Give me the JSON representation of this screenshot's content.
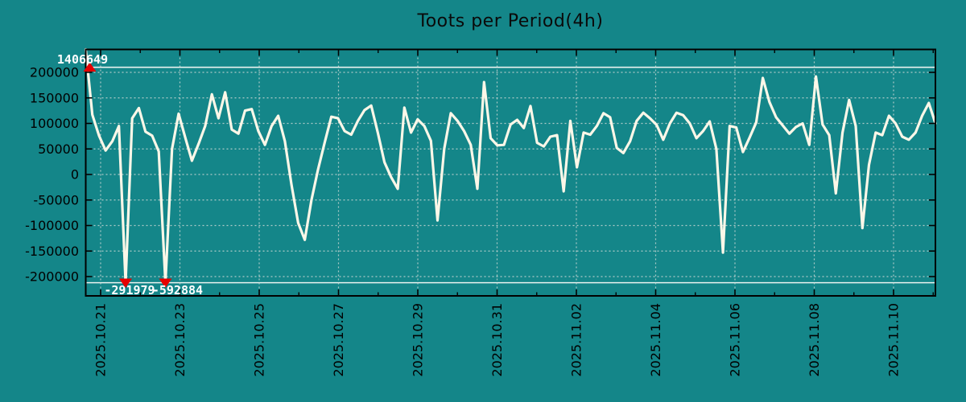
{
  "colors": {
    "background": "#148689",
    "line": "#fcf7e8",
    "grid": "#c8d6d4",
    "frame": "#000000",
    "tick_text": "#000000",
    "title_text": "#0a0a0a",
    "marker": "#e60000",
    "annotation_text": "#ffffff",
    "offscale_line": "#e9f2ef"
  },
  "chart_data": {
    "type": "line",
    "title": "Toots per Period(4h)",
    "period": "4h",
    "grid": true,
    "legend": null,
    "x_tick_labels": [
      "2025.10.21",
      "2025.10.23",
      "2025.10.25",
      "2025.10.27",
      "2025.10.29",
      "2025.10.31",
      "2025.11.02",
      "2025.11.04",
      "2025.11.06",
      "2025.11.08",
      "2025.11.10"
    ],
    "y_tick_labels": [
      "200000",
      "150000",
      "100000",
      "50000",
      "0",
      "-50000",
      "-100000",
      "-150000",
      "-200000"
    ],
    "y_tick_values": [
      200000,
      150000,
      100000,
      50000,
      0,
      -50000,
      -100000,
      -150000,
      -200000
    ],
    "offscale_lines": [
      210000,
      -212000
    ],
    "values": [
      1406649,
      117000,
      76000,
      47000,
      65000,
      95000,
      -291979,
      110000,
      130000,
      84000,
      76000,
      45000,
      -592884,
      50000,
      119000,
      72000,
      27000,
      60000,
      95000,
      157000,
      110000,
      161000,
      88000,
      80000,
      125000,
      128000,
      85000,
      58000,
      95000,
      115000,
      65000,
      -20000,
      -95000,
      -128000,
      -50000,
      10000,
      63000,
      113000,
      110000,
      85000,
      78000,
      105000,
      126000,
      135000,
      82000,
      24000,
      -5000,
      -28000,
      131000,
      82000,
      108000,
      95000,
      66000,
      -90000,
      50000,
      120000,
      105000,
      85000,
      58000,
      -28000,
      181000,
      71000,
      57000,
      58000,
      98000,
      107000,
      91000,
      134000,
      62000,
      55000,
      74000,
      77000,
      -33000,
      105000,
      14000,
      82000,
      78000,
      95000,
      120000,
      112000,
      52000,
      42000,
      65000,
      105000,
      121000,
      110000,
      97000,
      68000,
      100000,
      121000,
      116000,
      100000,
      71000,
      85000,
      104000,
      50000,
      -153000,
      95000,
      92000,
      44000,
      72000,
      102000,
      189000,
      142000,
      112000,
      96000,
      80000,
      93000,
      100000,
      58000,
      192000,
      98000,
      77000,
      -37000,
      82000,
      146000,
      95000,
      -105000,
      19000,
      82000,
      77000,
      115000,
      100000,
      74000,
      68000,
      82000,
      115000,
      140000,
      100000
    ],
    "offscale_points": [
      {
        "index": 0,
        "value": 1406649,
        "label": "1406649",
        "edge": "top"
      },
      {
        "index": 6,
        "value": -291979,
        "label": "-291979",
        "edge": "bottom"
      },
      {
        "index": 12,
        "value": -592884,
        "label": "-592884",
        "edge": "bottom"
      }
    ]
  }
}
